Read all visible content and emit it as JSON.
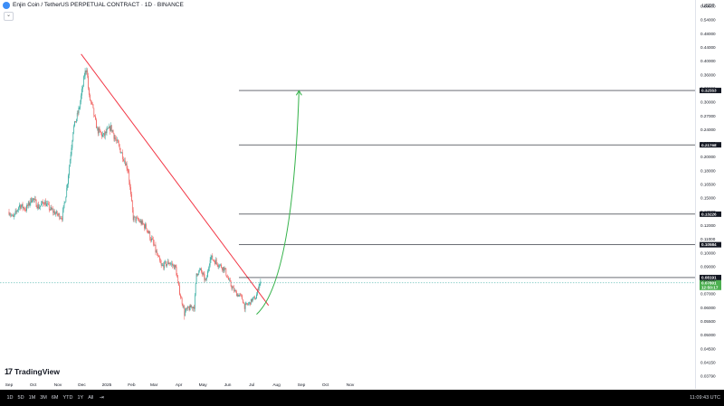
{
  "header": {
    "title": "Enjin Coin / TetherUS PERPETUAL CONTRACT · 1D · BINANCE",
    "collapse_glyph": "⌄",
    "currency": "USDT",
    "symbol_icon": "enjin-coin-icon"
  },
  "logo": {
    "mark": "17",
    "text": "TradingView"
  },
  "footer": {
    "timeframes": [
      "1D",
      "5D",
      "1M",
      "3M",
      "6M",
      "YTD",
      "1Y",
      "All"
    ],
    "goto_glyph": "⇥",
    "clock": "11:09:43 UTC"
  },
  "colors": {
    "up": "#26a69a",
    "down": "#ef5350",
    "trendline": "#f23645",
    "arrow": "#33b249",
    "price_label": "#4caf50",
    "level_label": "#131722"
  },
  "chart_data": {
    "type": "candlestick",
    "y_scale": "log",
    "ylim": [
      0.0379,
      0.0654
    ],
    "y_ticks": [
      "0.60000",
      "0.54000",
      "0.48000",
      "0.44000",
      "0.40000",
      "0.36000",
      "0.33000",
      "0.30000",
      "0.27000",
      "0.24000",
      "0.22000",
      "0.20000",
      "0.18000",
      "0.16500",
      "0.15000",
      "0.13500",
      "0.12000",
      "0.11000",
      "0.10000",
      "0.09000",
      "0.08000",
      "0.07000",
      "0.06000",
      "0.05500",
      "0.05000",
      "0.04500",
      "0.04150",
      "0.03790"
    ],
    "x_ticks": [
      "Sep",
      "Oct",
      "Nov",
      "Dec",
      "2025",
      "Feb",
      "Mar",
      "Apr",
      "May",
      "Jun",
      "Jul",
      "Aug",
      "Sep",
      "Oct",
      "Nov"
    ],
    "price_anchors": [
      {
        "date": "2024-09-01",
        "close": 0.135
      },
      {
        "date": "2024-09-06",
        "close": 0.128
      },
      {
        "date": "2024-09-14",
        "close": 0.142
      },
      {
        "date": "2024-09-22",
        "close": 0.138
      },
      {
        "date": "2024-09-30",
        "close": 0.15
      },
      {
        "date": "2024-10-08",
        "close": 0.14
      },
      {
        "date": "2024-10-15",
        "close": 0.146
      },
      {
        "date": "2024-10-22",
        "close": 0.138
      },
      {
        "date": "2024-10-31",
        "close": 0.132
      },
      {
        "date": "2024-11-06",
        "close": 0.129
      },
      {
        "date": "2024-11-12",
        "close": 0.16
      },
      {
        "date": "2024-11-20",
        "close": 0.24
      },
      {
        "date": "2024-11-28",
        "close": 0.29
      },
      {
        "date": "2024-12-04",
        "close": 0.36
      },
      {
        "date": "2024-12-07",
        "close": 0.38
      },
      {
        "date": "2024-12-10",
        "close": 0.31
      },
      {
        "date": "2024-12-14",
        "close": 0.29
      },
      {
        "date": "2024-12-20",
        "close": 0.24
      },
      {
        "date": "2024-12-28",
        "close": 0.23
      },
      {
        "date": "2025-01-06",
        "close": 0.245
      },
      {
        "date": "2025-01-12",
        "close": 0.225
      },
      {
        "date": "2025-01-20",
        "close": 0.205
      },
      {
        "date": "2025-01-28",
        "close": 0.18
      },
      {
        "date": "2025-02-03",
        "close": 0.128
      },
      {
        "date": "2025-02-10",
        "close": 0.125
      },
      {
        "date": "2025-02-20",
        "close": 0.118
      },
      {
        "date": "2025-03-01",
        "close": 0.105
      },
      {
        "date": "2025-03-10",
        "close": 0.09
      },
      {
        "date": "2025-03-20",
        "close": 0.093
      },
      {
        "date": "2025-03-28",
        "close": 0.089
      },
      {
        "date": "2025-04-03",
        "close": 0.068
      },
      {
        "date": "2025-04-08",
        "close": 0.058
      },
      {
        "date": "2025-04-14",
        "close": 0.06
      },
      {
        "date": "2025-04-20",
        "close": 0.061
      },
      {
        "date": "2025-04-23",
        "close": 0.085
      },
      {
        "date": "2025-04-28",
        "close": 0.087
      },
      {
        "date": "2025-05-05",
        "close": 0.079
      },
      {
        "date": "2025-05-10",
        "close": 0.097
      },
      {
        "date": "2025-05-18",
        "close": 0.093
      },
      {
        "date": "2025-05-28",
        "close": 0.088
      },
      {
        "date": "2025-06-05",
        "close": 0.076
      },
      {
        "date": "2025-06-12",
        "close": 0.07
      },
      {
        "date": "2025-06-18",
        "close": 0.068
      },
      {
        "date": "2025-06-22",
        "close": 0.061
      },
      {
        "date": "2025-06-28",
        "close": 0.063
      },
      {
        "date": "2025-07-02",
        "close": 0.066
      },
      {
        "date": "2025-07-06",
        "close": 0.067
      },
      {
        "date": "2025-07-10",
        "close": 0.077
      },
      {
        "date": "2025-07-12",
        "close": 0.078
      }
    ],
    "trendline": {
      "from": {
        "date": "2024-11-30",
        "price": 0.42
      },
      "to": {
        "date": "2025-07-22",
        "price": 0.0615
      }
    },
    "projection_arrow": {
      "from": {
        "date": "2025-07-07",
        "price": 0.0575
      },
      "to": {
        "date": "2025-08-29",
        "price": 0.325
      }
    },
    "levels": [
      {
        "label": "0.32553",
        "price": 0.32553
      },
      {
        "label": "0.21768",
        "price": 0.21768
      },
      {
        "label": "0.13226",
        "price": 0.13226
      },
      {
        "label": "0.10584",
        "price": 0.10584
      },
      {
        "label": "0.08191",
        "price": 0.08191
      }
    ],
    "last_price": {
      "label": "0.07801",
      "price": 0.07801,
      "countdown": "12:50:17"
    }
  }
}
